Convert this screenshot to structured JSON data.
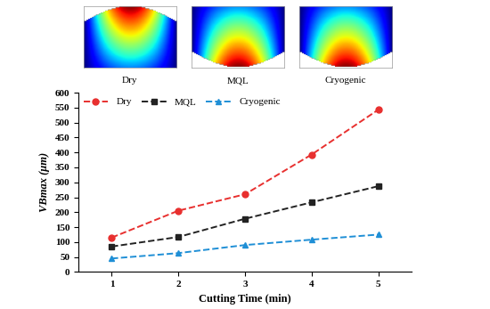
{
  "panels": [
    "Dry",
    "MQL",
    "Cryogenic"
  ],
  "chart_data": {
    "type": "line",
    "x_label": "Cutting Time (min)",
    "y_label": "VBmax (μm)",
    "x": [
      1,
      2,
      3,
      4,
      5
    ],
    "xlim": [
      0.5,
      5.5
    ],
    "xticks": [
      1,
      2,
      3,
      4,
      5
    ],
    "ylim": [
      0,
      600
    ],
    "yticks": [
      0,
      50,
      100,
      150,
      200,
      250,
      300,
      350,
      400,
      450,
      500,
      550,
      600
    ],
    "legend": "upper left",
    "series": [
      {
        "name": "Dry",
        "color": "#e8302f",
        "marker": "circle",
        "line_style": "dashed",
        "values": [
          115,
          205,
          260,
          393,
          543
        ]
      },
      {
        "name": "MQL",
        "color": "#222222",
        "marker": "square",
        "line_style": "dashed",
        "values": [
          85,
          117,
          178,
          233,
          287
        ]
      },
      {
        "name": "Cryogenic",
        "color": "#1f8fd6",
        "marker": "triangle",
        "line_style": "dashed",
        "values": [
          45,
          63,
          90,
          108,
          125
        ]
      }
    ]
  }
}
